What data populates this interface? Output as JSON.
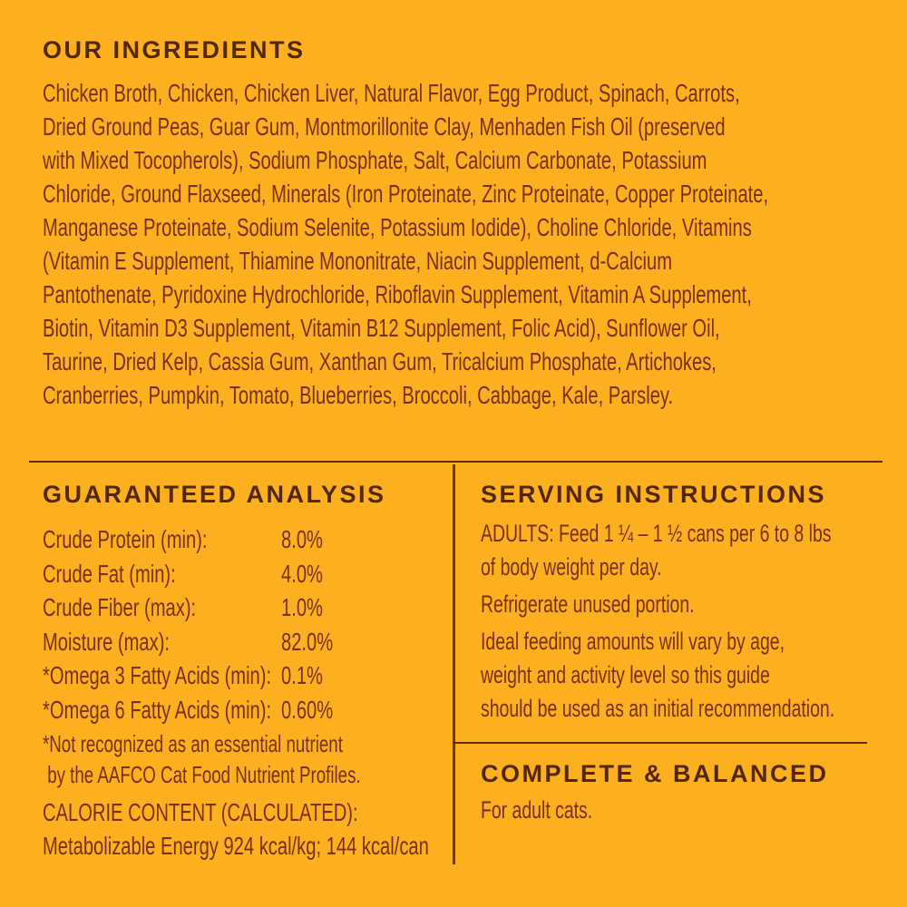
{
  "colors": {
    "background": "#FCB01F",
    "heading_text": "#512710",
    "body_text": "#7A2F18",
    "divider": "#5E2B10"
  },
  "ingredients": {
    "title": "OUR INGREDIENTS",
    "text": "Chicken Broth, Chicken, Chicken Liver, Natural Flavor, Egg Product, Spinach, Carrots,\nDried Ground Peas, Guar Gum, Montmorillonite Clay, Menhaden Fish Oil (preserved\nwith Mixed Tocopherols), Sodium Phosphate, Salt, Calcium Carbonate, Potassium\nChloride, Ground Flaxseed, Minerals (Iron Proteinate, Zinc Proteinate, Copper Proteinate,\nManganese Proteinate, Sodium Selenite, Potassium Iodide), Choline Chloride, Vitamins\n(Vitamin E Supplement, Thiamine Mononitrate, Niacin Supplement, d-Calcium\nPantothenate, Pyridoxine Hydrochloride, Riboflavin Supplement, Vitamin A Supplement,\nBiotin, Vitamin D3 Supplement, Vitamin B12 Supplement, Folic Acid), Sunflower Oil,\nTaurine, Dried Kelp, Cassia Gum, Xanthan Gum, Tricalcium Phosphate, Artichokes,\nCranberries, Pumpkin, Tomato, Blueberries, Broccoli, Cabbage, Kale, Parsley."
  },
  "guaranteed_analysis": {
    "title": "GUARANTEED ANALYSIS",
    "rows": [
      {
        "label": "Crude Protein (min):",
        "value": "8.0%"
      },
      {
        "label": "Crude Fat (min):",
        "value": "4.0%"
      },
      {
        "label": "Crude Fiber (max):",
        "value": "1.0%"
      },
      {
        "label": "Moisture (max):",
        "value": "82.0%"
      },
      {
        "label": "*Omega 3 Fatty Acids (min):",
        "value": "0.1%"
      },
      {
        "label": "*Omega 6 Fatty Acids (min):",
        "value": "0.60%"
      }
    ],
    "footnote": "*Not recognized as an essential nutrient\n by the AAFCO Cat Food Nutrient Profiles.",
    "calorie_title": "CALORIE CONTENT (CALCULATED):",
    "calorie_text": "Metabolizable Energy 924 kcal/kg; 144 kcal/can"
  },
  "serving_instructions": {
    "title": "SERVING INSTRUCTIONS",
    "paragraphs": [
      "ADULTS: Feed 1 ¼ – 1 ½ cans per 6 to 8 lbs\nof body weight per day.",
      "Refrigerate unused portion.",
      "Ideal feeding amounts will vary by age,\nweight and activity level so this guide\nshould be used as an initial recommendation."
    ]
  },
  "complete_balanced": {
    "title": "COMPLETE & BALANCED",
    "subtitle": "For adult cats."
  }
}
